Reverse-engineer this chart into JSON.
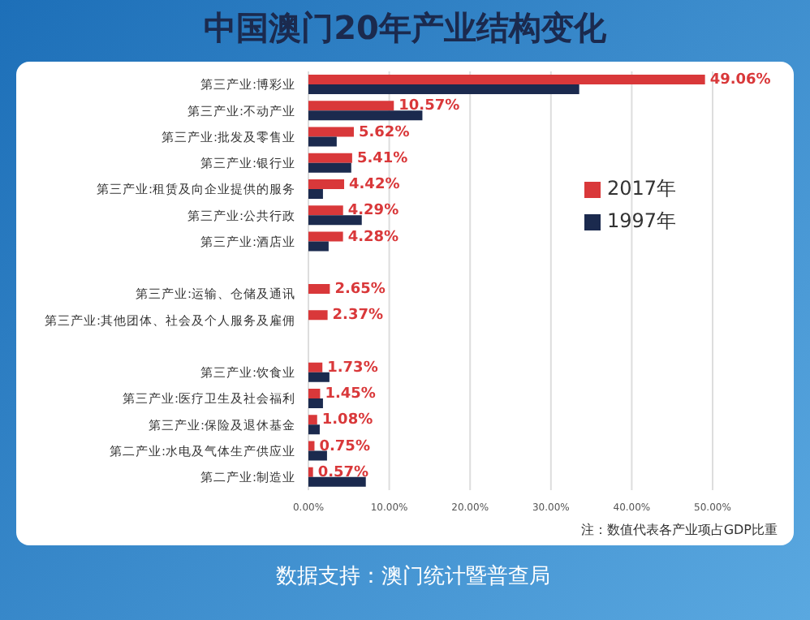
{
  "chart_data": {
    "type": "bar",
    "orientation": "horizontal",
    "title": "中国澳门20年产业结构变化",
    "categories": [
      "第三产业:博彩业",
      "第三产业:不动产业",
      "第三产业:批发及零售业",
      "第三产业:银行业",
      "第三产业:租赁及向企业提供的服务",
      "第三产业:公共行政",
      "第三产业:酒店业",
      null,
      "第三产业:运输、仓储及通讯",
      "第三产业:其他团体、社会及个人服务及雇佣",
      null,
      "第三产业:饮食业",
      "第三产业:医疗卫生及社会福利",
      "第三产业:保险及退休基金",
      "第二产业:水电及气体生产供应业",
      "第二产业:制造业"
    ],
    "series": [
      {
        "name": "2017年",
        "color": "#d9383a",
        "values": [
          49.06,
          10.57,
          5.62,
          5.41,
          4.42,
          4.29,
          4.28,
          null,
          2.65,
          2.37,
          null,
          1.73,
          1.45,
          1.08,
          0.75,
          0.57
        ],
        "value_labels": [
          "49.06%",
          "10.57%",
          "5.62%",
          "5.41%",
          "4.42%",
          "4.29%",
          "4.28%",
          null,
          "2.65%",
          "2.37%",
          null,
          "1.73%",
          "1.45%",
          "1.08%",
          "0.75%",
          "0.57%"
        ]
      },
      {
        "name": "1997年",
        "color": "#1b2a4e",
        "values": [
          33.5,
          14.1,
          3.5,
          5.3,
          1.8,
          6.6,
          2.5,
          null,
          null,
          null,
          null,
          2.6,
          1.8,
          1.4,
          2.3,
          7.1
        ]
      }
    ],
    "xlim": [
      0,
      50
    ],
    "xticks": [
      {
        "value": 0,
        "label": "0.00%"
      },
      {
        "value": 10,
        "label": "10.00%"
      },
      {
        "value": 20,
        "label": "20.00%"
      },
      {
        "value": 30,
        "label": "30.00%"
      },
      {
        "value": 40,
        "label": "40.00%"
      },
      {
        "value": 50,
        "label": "50.00%"
      }
    ],
    "grid": "x",
    "legend": "right",
    "annotations": [
      "注：数值代表各产业项占GDP比重",
      "数据支持：澳门统计暨普查局"
    ]
  }
}
